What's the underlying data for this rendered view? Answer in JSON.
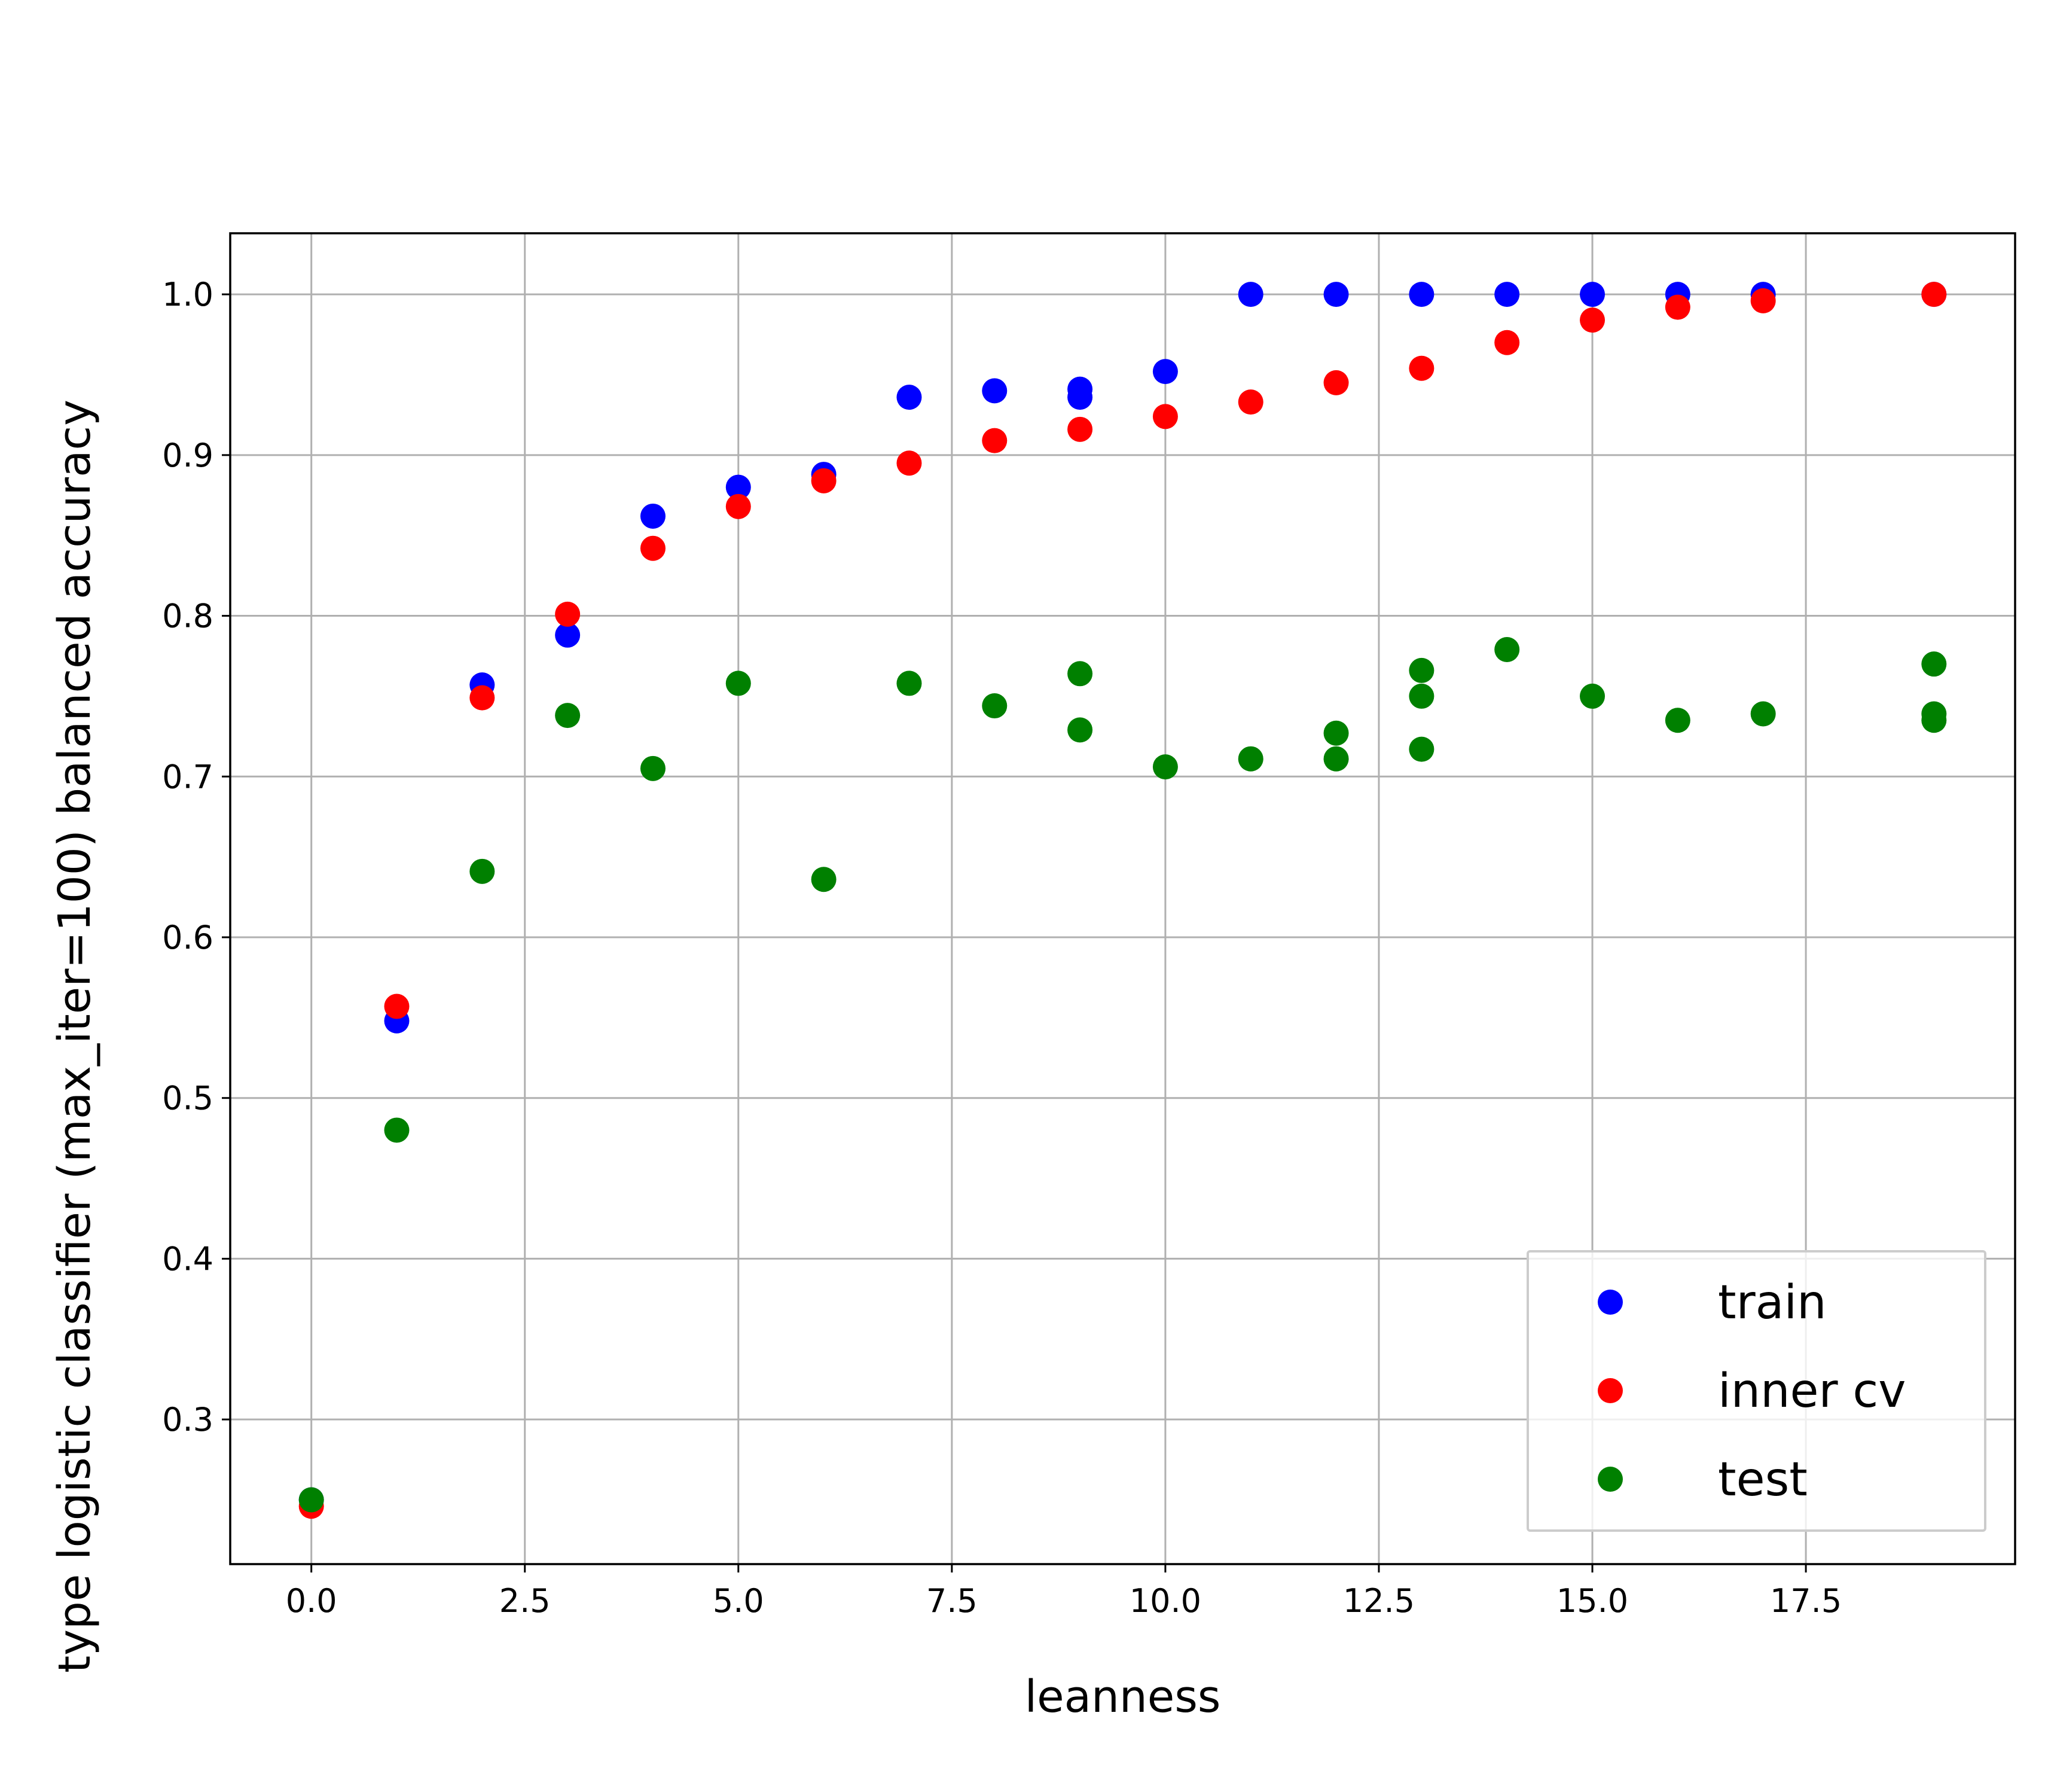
{
  "chart_data": {
    "type": "scatter",
    "xlabel": "leanness",
    "ylabel": "type logistic classifier (max_iter=100) balanced accuracy",
    "xlim": [
      -0.95,
      19.95
    ],
    "ylim": [
      0.21,
      1.038
    ],
    "xticks": [
      0.0,
      2.5,
      5.0,
      7.5,
      10.0,
      12.5,
      15.0,
      17.5
    ],
    "xtick_labels": [
      "0.0",
      "2.5",
      "5.0",
      "7.5",
      "10.0",
      "12.5",
      "15.0",
      "17.5"
    ],
    "yticks": [
      0.3,
      0.4,
      0.5,
      0.6,
      0.7,
      0.8,
      0.9,
      1.0
    ],
    "ytick_labels": [
      "0.3",
      "0.4",
      "0.5",
      "0.6",
      "0.7",
      "0.8",
      "0.9",
      "1.0"
    ],
    "grid": true,
    "legend_position": "lower-right",
    "series": [
      {
        "name": "train",
        "color": "#0000ff",
        "points": [
          [
            0,
            0.25
          ],
          [
            1,
            0.548
          ],
          [
            2,
            0.757
          ],
          [
            3,
            0.788
          ],
          [
            4,
            0.862
          ],
          [
            5,
            0.88
          ],
          [
            6,
            0.888
          ],
          [
            7,
            0.936
          ],
          [
            8,
            0.94
          ],
          [
            9,
            0.941
          ],
          [
            9,
            0.936
          ],
          [
            10,
            0.952
          ],
          [
            11,
            1.0
          ],
          [
            12,
            1.0
          ],
          [
            13,
            1.0
          ],
          [
            14,
            1.0
          ],
          [
            15,
            1.0
          ],
          [
            16,
            1.0
          ],
          [
            17,
            1.0
          ],
          [
            19,
            1.0
          ]
        ]
      },
      {
        "name": "inner cv",
        "color": "#ff0000",
        "points": [
          [
            0,
            0.246
          ],
          [
            1,
            0.557
          ],
          [
            2,
            0.749
          ],
          [
            3,
            0.801
          ],
          [
            4,
            0.842
          ],
          [
            5,
            0.868
          ],
          [
            6,
            0.884
          ],
          [
            7,
            0.895
          ],
          [
            8,
            0.909
          ],
          [
            9,
            0.916
          ],
          [
            10,
            0.924
          ],
          [
            11,
            0.933
          ],
          [
            12,
            0.945
          ],
          [
            13,
            0.954
          ],
          [
            14,
            0.97
          ],
          [
            15,
            0.984
          ],
          [
            16,
            0.992
          ],
          [
            17,
            0.996
          ],
          [
            19,
            1.0
          ]
        ]
      },
      {
        "name": "test",
        "color": "#008000",
        "points": [
          [
            0,
            0.25
          ],
          [
            1,
            0.48
          ],
          [
            2,
            0.641
          ],
          [
            3,
            0.738
          ],
          [
            4,
            0.705
          ],
          [
            5,
            0.758
          ],
          [
            6,
            0.636
          ],
          [
            7,
            0.758
          ],
          [
            8,
            0.744
          ],
          [
            9,
            0.764
          ],
          [
            9,
            0.729
          ],
          [
            10,
            0.706
          ],
          [
            11,
            0.711
          ],
          [
            12,
            0.727
          ],
          [
            12,
            0.711
          ],
          [
            13,
            0.766
          ],
          [
            13,
            0.75
          ],
          [
            13,
            0.717
          ],
          [
            14,
            0.779
          ],
          [
            15,
            0.75
          ],
          [
            16,
            0.735
          ],
          [
            17,
            0.739
          ],
          [
            19,
            0.77
          ],
          [
            19,
            0.739
          ],
          [
            19,
            0.735
          ]
        ]
      }
    ]
  }
}
